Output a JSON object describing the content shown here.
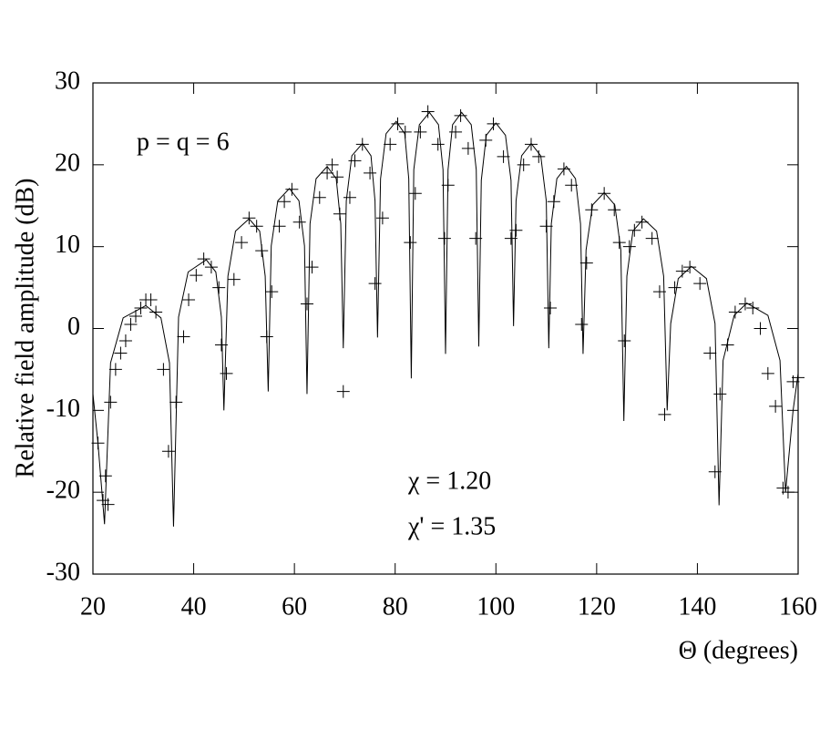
{
  "chart_data": {
    "type": "line",
    "xlabel": "Θ (degrees)",
    "ylabel": "Relative field amplitude (dB)",
    "annotations": [
      "p = q = 6",
      "χ  = 1.20",
      "χ' = 1.35"
    ],
    "xlim": [
      20,
      160
    ],
    "xticks": [
      20,
      40,
      60,
      80,
      100,
      120,
      140,
      160
    ],
    "ylim": [
      -30,
      30
    ],
    "yticks": [
      -30,
      -20,
      -10,
      0,
      10,
      20,
      30
    ],
    "grid": false,
    "series": [
      {
        "type": "line",
        "color": "#000000",
        "x": [
          20,
          21,
          22.3,
          23.5,
          26,
          30.5,
          33.5,
          35.2,
          36,
          37,
          38.9,
          42.5,
          44.4,
          45.5,
          46,
          46.8,
          48.3,
          51,
          53.1,
          54.2,
          54.8,
          55.4,
          56.7,
          59,
          60.9,
          62,
          62.5,
          63.1,
          64.3,
          66.5,
          68.3,
          69.2,
          69.7,
          70.3,
          71.4,
          73.5,
          75.2,
          76,
          76.5,
          77.1,
          78.2,
          80.2,
          81.9,
          82.7,
          83.2,
          83.7,
          84.8,
          86.8,
          88.6,
          89.5,
          90,
          90.5,
          91.4,
          93.2,
          95.1,
          96.1,
          96.6,
          97.1,
          98.1,
          100,
          101.9,
          103,
          103.5,
          104,
          105.1,
          107,
          108.9,
          110,
          110.5,
          111,
          112.1,
          114,
          115.8,
          116.8,
          117.3,
          117.9,
          119.2,
          121.5,
          123.6,
          124.8,
          125.4,
          126,
          127.2,
          129.3,
          131.9,
          133.3,
          134,
          134.7,
          136.2,
          138.8,
          141.8,
          143.5,
          144.3,
          145.1,
          147.3,
          149.8,
          154,
          156.4,
          157.5,
          159,
          160
        ],
        "values": [
          -8,
          -14,
          -23.9,
          -4.2,
          1.3,
          2.8,
          1.3,
          -4.2,
          -24.2,
          1.4,
          6.9,
          8.4,
          6.9,
          1.4,
          -10,
          6.4,
          11.9,
          13.4,
          11.9,
          6.4,
          -7.7,
          10.1,
          15.6,
          17.1,
          15.6,
          10.1,
          -8,
          12.8,
          18.3,
          19.8,
          18.3,
          12.8,
          -2.4,
          15.6,
          21.1,
          22.6,
          21.1,
          15.6,
          -1.1,
          18.3,
          23.8,
          25.3,
          23.8,
          18.3,
          -6.1,
          19.4,
          24.9,
          26.4,
          24.9,
          19.4,
          -3.1,
          19.4,
          24.9,
          26.4,
          24.9,
          19.4,
          -2.2,
          18.1,
          23.6,
          25.1,
          23.6,
          18.1,
          0.3,
          15.6,
          21.1,
          22.6,
          21.1,
          15.6,
          -2.4,
          12.8,
          18.3,
          19.8,
          18.3,
          12.8,
          -3.1,
          9.6,
          15.1,
          16.6,
          15.1,
          9.6,
          -11.3,
          6.4,
          11.9,
          13.4,
          11.9,
          6.4,
          -10,
          0.6,
          6.1,
          7.6,
          6.1,
          0.6,
          -21.6,
          -3.9,
          1.6,
          3.1,
          1.6,
          -3.9,
          -20,
          -10,
          -5.5
        ]
      },
      {
        "type": "scatter",
        "color": "#000000",
        "marker": "+",
        "x": [
          21,
          22,
          22.5,
          23,
          23.5,
          24.5,
          25.5,
          26.5,
          27.5,
          28.5,
          29.5,
          30.5,
          31.5,
          32.5,
          34,
          35,
          36.5,
          38,
          39,
          40.5,
          42,
          43.5,
          45,
          45.5,
          46.5,
          48,
          49.5,
          51,
          52.5,
          53.5,
          54.5,
          55.5,
          57,
          58,
          59.5,
          61,
          62.5,
          63.5,
          65,
          66.5,
          67.5,
          68.5,
          69,
          69.7,
          71,
          72,
          73.5,
          75,
          76,
          77.5,
          79,
          80.5,
          82,
          83,
          84,
          85,
          86.5,
          88.5,
          89.8,
          90.5,
          92,
          93,
          94.5,
          96,
          98,
          99.5,
          101.5,
          103,
          104,
          105.5,
          107,
          108.5,
          110,
          110.8,
          111.5,
          113.5,
          115,
          117,
          118,
          119,
          121.5,
          123.5,
          124.5,
          125.5,
          126.5,
          127.5,
          129,
          131,
          132.5,
          133.5,
          135.5,
          137,
          138.5,
          140.5,
          142.5,
          143.5,
          144.5,
          146,
          147.5,
          149.5,
          151,
          152.5,
          154,
          155.5,
          157,
          158,
          159,
          160
        ],
        "values": [
          -14,
          -21,
          -18,
          -21.5,
          -9,
          -5,
          -3,
          -1.5,
          0.5,
          1.5,
          2.5,
          3.5,
          3.5,
          2,
          -5,
          -15,
          -9,
          -1,
          3.5,
          6.5,
          8.5,
          7.5,
          5,
          -2,
          -5.5,
          6,
          10.5,
          13.5,
          12.5,
          9.5,
          -1,
          4.5,
          12.5,
          15.5,
          17,
          13,
          3,
          7.5,
          16,
          19,
          20,
          18.5,
          14,
          -7.7,
          16,
          20.5,
          22.5,
          19,
          5.5,
          13.5,
          22.5,
          25,
          24,
          10.5,
          16.5,
          24,
          26.5,
          22.5,
          11,
          17.5,
          24,
          26,
          22,
          11,
          23,
          25,
          21,
          11,
          12,
          20,
          22.5,
          21,
          12.5,
          2.5,
          15.5,
          19.5,
          17.5,
          0.5,
          8,
          14.5,
          16.5,
          14.5,
          10.5,
          -1.5,
          10,
          12,
          13,
          11,
          4.5,
          -10.5,
          5,
          7,
          7.5,
          5.5,
          -3,
          -17.5,
          -8,
          -2,
          2,
          3,
          2.5,
          0,
          -5.5,
          -9.5,
          -19.5,
          -20,
          -6.5,
          -6
        ]
      }
    ]
  }
}
